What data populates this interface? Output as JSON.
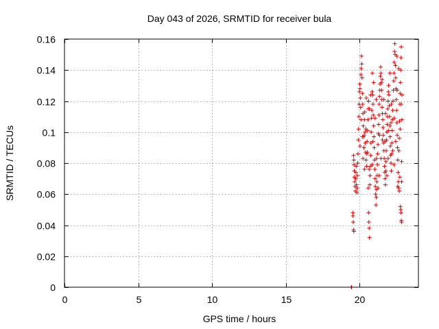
{
  "chart_data": {
    "type": "scatter",
    "title": "Day 043 of 2026, SRMTID for receiver bula",
    "xlabel": "GPS time / hours",
    "ylabel": "SRMTID / TECUs",
    "xlim": [
      0,
      24
    ],
    "ylim": [
      0,
      0.16
    ],
    "xticks": [
      0,
      5,
      10,
      15,
      20
    ],
    "xtick_labels": [
      "0",
      "5",
      "10",
      "15",
      "20"
    ],
    "yticks": [
      0,
      0.02,
      0.04,
      0.06,
      0.08,
      0.1,
      0.12,
      0.14,
      0.16
    ],
    "ytick_labels": [
      "0",
      "0.02",
      "0.04",
      "0.06",
      "0.08",
      "0.1",
      "0.12",
      "0.14",
      "0.16"
    ],
    "grid": true,
    "marker": "+",
    "color": "#e00000",
    "series": [
      {
        "name": "SRMTID",
        "points": [
          [
            19.45,
            0.0
          ],
          [
            19.47,
            0.0
          ],
          [
            19.55,
            0.048
          ],
          [
            19.56,
            0.046
          ],
          [
            19.58,
            0.042
          ],
          [
            19.6,
            0.037
          ],
          [
            19.62,
            0.036
          ],
          [
            19.6,
            0.085
          ],
          [
            19.62,
            0.082
          ],
          [
            19.63,
            0.079
          ],
          [
            19.65,
            0.075
          ],
          [
            19.66,
            0.071
          ],
          [
            19.68,
            0.068
          ],
          [
            19.7,
            0.065
          ],
          [
            19.72,
            0.062
          ],
          [
            19.74,
            0.07
          ],
          [
            19.76,
            0.074
          ],
          [
            19.78,
            0.078
          ],
          [
            19.8,
            0.066
          ],
          [
            19.82,
            0.061
          ],
          [
            19.84,
            0.064
          ],
          [
            19.86,
            0.072
          ],
          [
            19.88,
            0.08
          ],
          [
            19.9,
            0.086
          ],
          [
            19.92,
            0.095
          ],
          [
            19.94,
            0.102
          ],
          [
            19.96,
            0.11
          ],
          [
            19.98,
            0.118
          ],
          [
            20.0,
            0.126
          ],
          [
            20.02,
            0.131
          ],
          [
            20.04,
            0.128
          ],
          [
            20.06,
            0.122
          ],
          [
            20.08,
            0.116
          ],
          [
            20.1,
            0.108
          ],
          [
            20.1,
            0.137
          ],
          [
            20.12,
            0.141
          ],
          [
            20.14,
            0.149
          ],
          [
            20.16,
            0.144
          ],
          [
            20.18,
            0.135
          ],
          [
            20.2,
            0.125
          ],
          [
            20.22,
            0.118
          ],
          [
            20.24,
            0.112
          ],
          [
            20.26,
            0.104
          ],
          [
            20.28,
            0.097
          ],
          [
            20.3,
            0.09
          ],
          [
            20.32,
            0.098
          ],
          [
            20.34,
            0.108
          ],
          [
            20.36,
            0.113
          ],
          [
            20.38,
            0.1
          ],
          [
            20.4,
            0.093
          ],
          [
            20.42,
            0.087
          ],
          [
            20.45,
            0.082
          ],
          [
            20.48,
            0.078
          ],
          [
            20.5,
            0.086
          ],
          [
            20.52,
            0.094
          ],
          [
            20.55,
            0.101
          ],
          [
            20.58,
            0.108
          ],
          [
            20.6,
            0.115
          ],
          [
            20.62,
            0.12
          ],
          [
            20.6,
            0.064
          ],
          [
            20.62,
            0.048
          ],
          [
            20.64,
            0.042
          ],
          [
            20.66,
            0.038
          ],
          [
            20.68,
            0.032
          ],
          [
            20.7,
            0.066
          ],
          [
            20.72,
            0.072
          ],
          [
            20.74,
            0.078
          ],
          [
            20.76,
            0.085
          ],
          [
            20.78,
            0.093
          ],
          [
            20.8,
            0.1
          ],
          [
            20.82,
            0.109
          ],
          [
            20.84,
            0.114
          ],
          [
            20.86,
            0.126
          ],
          [
            20.88,
            0.138
          ],
          [
            20.9,
            0.124
          ],
          [
            20.92,
            0.118
          ],
          [
            20.94,
            0.111
          ],
          [
            20.96,
            0.104
          ],
          [
            20.98,
            0.097
          ],
          [
            21.0,
            0.09
          ],
          [
            21.02,
            0.082
          ],
          [
            21.04,
            0.076
          ],
          [
            21.06,
            0.07
          ],
          [
            21.08,
            0.065
          ],
          [
            21.1,
            0.06
          ],
          [
            21.12,
            0.053
          ],
          [
            21.14,
            0.058
          ],
          [
            21.16,
            0.063
          ],
          [
            21.18,
            0.068
          ],
          [
            21.2,
            0.072
          ],
          [
            21.22,
            0.079
          ],
          [
            21.24,
            0.086
          ],
          [
            21.26,
            0.092
          ],
          [
            21.28,
            0.099
          ],
          [
            21.3,
            0.105
          ],
          [
            21.32,
            0.111
          ],
          [
            21.34,
            0.118
          ],
          [
            21.36,
            0.123
          ],
          [
            21.38,
            0.127
          ],
          [
            21.4,
            0.131
          ],
          [
            21.42,
            0.136
          ],
          [
            21.44,
            0.142
          ],
          [
            21.46,
            0.138
          ],
          [
            21.48,
            0.132
          ],
          [
            21.5,
            0.127
          ],
          [
            21.52,
            0.121
          ],
          [
            21.54,
            0.116
          ],
          [
            21.56,
            0.112
          ],
          [
            21.58,
            0.108
          ],
          [
            21.6,
            0.103
          ],
          [
            21.62,
            0.098
          ],
          [
            21.64,
            0.093
          ],
          [
            21.66,
            0.088
          ],
          [
            21.68,
            0.083
          ],
          [
            21.7,
            0.078
          ],
          [
            21.72,
            0.074
          ],
          [
            21.74,
            0.07
          ],
          [
            21.76,
            0.066
          ],
          [
            21.78,
            0.075
          ],
          [
            21.8,
            0.081
          ],
          [
            21.82,
            0.088
          ],
          [
            21.84,
            0.095
          ],
          [
            21.86,
            0.1
          ],
          [
            21.88,
            0.105
          ],
          [
            21.9,
            0.11
          ],
          [
            21.92,
            0.115
          ],
          [
            21.94,
            0.12
          ],
          [
            21.96,
            0.126
          ],
          [
            21.98,
            0.13
          ],
          [
            22.0,
            0.124
          ],
          [
            22.02,
            0.117
          ],
          [
            22.04,
            0.11
          ],
          [
            22.06,
            0.104
          ],
          [
            22.08,
            0.097
          ],
          [
            22.1,
            0.091
          ],
          [
            22.12,
            0.085
          ],
          [
            22.14,
            0.08
          ],
          [
            22.16,
            0.075
          ],
          [
            22.18,
            0.086
          ],
          [
            22.2,
            0.093
          ],
          [
            22.22,
            0.101
          ],
          [
            22.24,
            0.108
          ],
          [
            22.26,
            0.114
          ],
          [
            22.28,
            0.12
          ],
          [
            22.3,
            0.127
          ],
          [
            22.32,
            0.133
          ],
          [
            22.34,
            0.138
          ],
          [
            22.36,
            0.145
          ],
          [
            22.38,
            0.152
          ],
          [
            22.4,
            0.157
          ],
          [
            22.42,
            0.15
          ],
          [
            22.44,
            0.143
          ],
          [
            22.46,
            0.135
          ],
          [
            22.48,
            0.128
          ],
          [
            22.5,
            0.121
          ],
          [
            22.52,
            0.114
          ],
          [
            22.54,
            0.106
          ],
          [
            22.56,
            0.098
          ],
          [
            22.58,
            0.09
          ],
          [
            22.6,
            0.082
          ],
          [
            22.62,
            0.074
          ],
          [
            22.64,
            0.068
          ],
          [
            22.66,
            0.064
          ],
          [
            22.68,
            0.088
          ],
          [
            22.7,
            0.096
          ],
          [
            22.72,
            0.107
          ],
          [
            22.74,
            0.118
          ],
          [
            22.76,
            0.125
          ],
          [
            22.78,
            0.132
          ],
          [
            22.8,
            0.14
          ],
          [
            22.82,
            0.148
          ],
          [
            22.84,
            0.155
          ],
          [
            22.78,
            0.052
          ],
          [
            22.8,
            0.05
          ],
          [
            22.82,
            0.048
          ],
          [
            22.84,
            0.043
          ],
          [
            22.86,
            0.042
          ],
          [
            22.6,
            0.065
          ],
          [
            22.7,
            0.062
          ],
          [
            22.86,
            0.068
          ],
          [
            22.86,
            0.081
          ],
          [
            22.88,
            0.108
          ],
          [
            22.88,
            0.124
          ],
          [
            20.2,
            0.097
          ],
          [
            20.34,
            0.076
          ],
          [
            20.44,
            0.102
          ],
          [
            20.54,
            0.087
          ],
          [
            20.66,
            0.076
          ],
          [
            20.76,
            0.124
          ],
          [
            20.86,
            0.079
          ],
          [
            20.96,
            0.132
          ],
          [
            21.06,
            0.109
          ],
          [
            21.16,
            0.083
          ],
          [
            21.26,
            0.064
          ],
          [
            21.36,
            0.098
          ],
          [
            21.46,
            0.083
          ],
          [
            21.56,
            0.095
          ],
          [
            21.66,
            0.121
          ],
          [
            21.76,
            0.112
          ],
          [
            21.86,
            0.072
          ],
          [
            21.96,
            0.101
          ],
          [
            22.06,
            0.138
          ],
          [
            22.16,
            0.118
          ],
          [
            22.26,
            0.088
          ],
          [
            22.36,
            0.109
          ],
          [
            22.46,
            0.094
          ],
          [
            22.56,
            0.127
          ],
          [
            22.66,
            0.141
          ],
          [
            22.76,
            0.102
          ],
          [
            22.84,
            0.118
          ],
          [
            20.04,
            0.091
          ],
          [
            20.24,
            0.083
          ],
          [
            20.46,
            0.122
          ],
          [
            20.68,
            0.115
          ],
          [
            20.92,
            0.094
          ],
          [
            21.14,
            0.121
          ],
          [
            21.34,
            0.072
          ],
          [
            21.54,
            0.134
          ],
          [
            21.74,
            0.094
          ],
          [
            21.94,
            0.083
          ],
          [
            22.14,
            0.106
          ],
          [
            22.34,
            0.079
          ],
          [
            22.54,
            0.149
          ],
          [
            22.74,
            0.071
          ]
        ]
      }
    ]
  }
}
